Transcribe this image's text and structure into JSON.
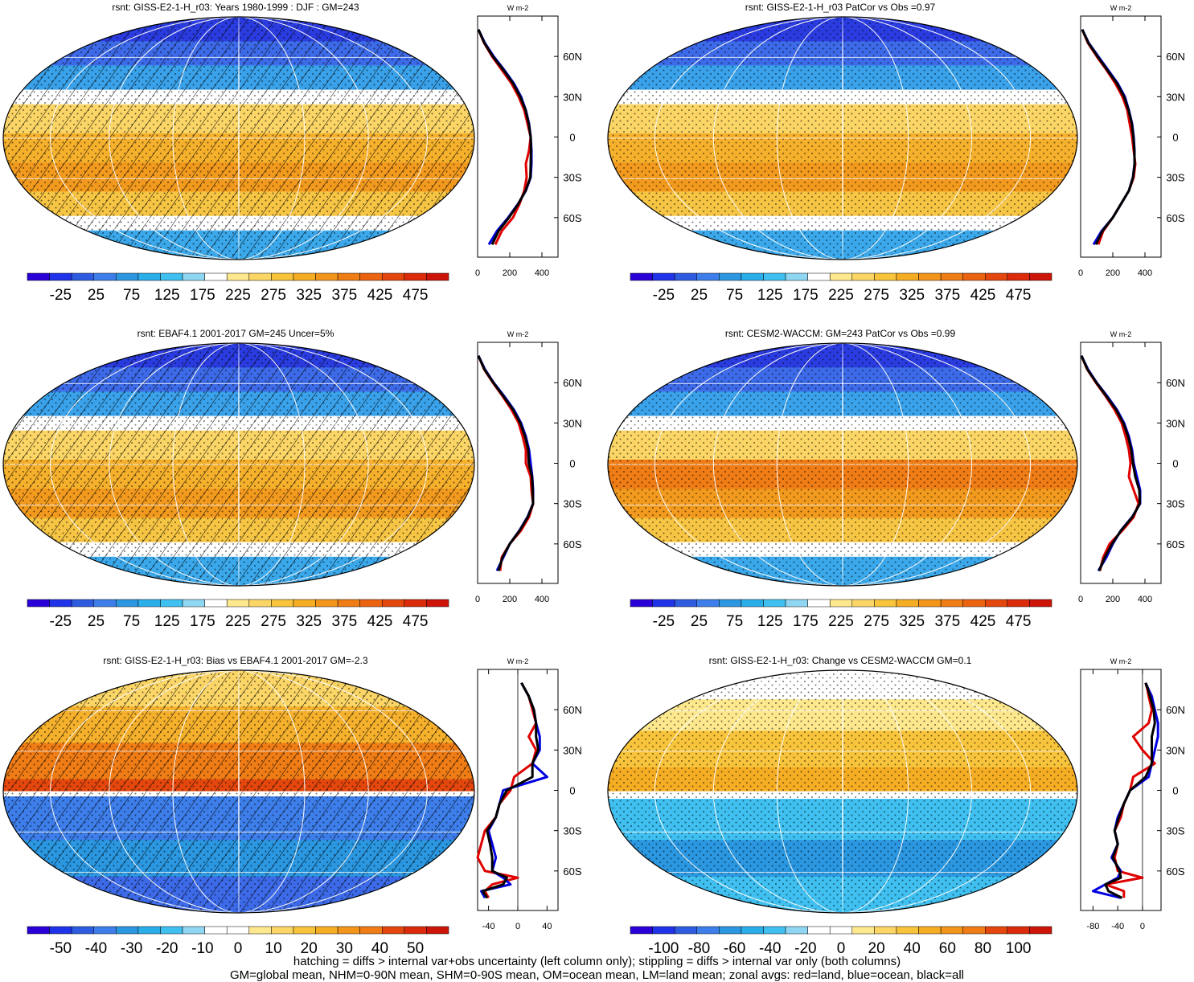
{
  "colors": {
    "abs_scale": [
      "#2a00d8",
      "#1f33e8",
      "#2e5ce0",
      "#3d7eea",
      "#2a97e0",
      "#29aeea",
      "#3fc0f0",
      "#8fd6f2",
      "#ffffff",
      "#fde88e",
      "#fbd566",
      "#f8c43c",
      "#f5ad24",
      "#f2951a",
      "#ef7c15",
      "#eb6210",
      "#e4470d",
      "#dc2b0a",
      "#cc1408"
    ],
    "bias_scale": [
      "#2a00d8",
      "#1f33e8",
      "#2e5ce0",
      "#3d7eea",
      "#2a97e0",
      "#29aeea",
      "#3fc0f0",
      "#8fd6f2",
      "#ffffff",
      "#ffffff",
      "#fde88e",
      "#fbd566",
      "#f8c43c",
      "#f5ad24",
      "#f2951a",
      "#ef7c15",
      "#e4470d",
      "#dc2b0a",
      "#cc1408"
    ],
    "land_line": "#e00000",
    "ocean_line": "#0000e0",
    "all_line": "#000000"
  },
  "footer": {
    "line1": "hatching = diffs > internal var+obs uncertainty (left column only); stippling = diffs > internal var only (both columns)",
    "line2": "GM=global mean, NHM=0-90N mean, SHM=0-90S mean, OM=ocean mean, LM=land mean; zonal avgs: red=land, blue=ocean, black=all"
  },
  "chart_data": [
    {
      "type": "heatmap",
      "title": "rsnt: GISS-E2-1-H_r03: Years 1980-1999 : DJF : GM=243",
      "colorbar_labels": [
        "-25",
        "25",
        "75",
        "125",
        "175",
        "225",
        "275",
        "325",
        "375",
        "425",
        "475"
      ],
      "zonal_avg": {
        "unit": "W m-2",
        "lat_labels": [
          "60N",
          "30N",
          "0",
          "30S",
          "60S"
        ],
        "x_ticks": [
          "0",
          "200",
          "400"
        ],
        "xlim": [
          0,
          500
        ],
        "lat": [
          80,
          70,
          60,
          50,
          40,
          30,
          20,
          10,
          0,
          -10,
          -20,
          -30,
          -40,
          -50,
          -60,
          -70,
          -80
        ],
        "land": [
          5,
          40,
          90,
          150,
          210,
          255,
          290,
          310,
          330,
          320,
          300,
          305,
          290,
          260,
          220,
          150,
          110
        ],
        "ocean": [
          5,
          45,
          100,
          165,
          225,
          270,
          300,
          320,
          330,
          335,
          335,
          330,
          300,
          250,
          190,
          120,
          70
        ],
        "all": [
          5,
          42,
          95,
          160,
          220,
          265,
          298,
          318,
          330,
          332,
          330,
          328,
          298,
          252,
          195,
          130,
          90
        ]
      }
    },
    {
      "type": "heatmap",
      "title": "rsnt: GISS-E2-1-H_r03 PatCor vs Obs =0.97",
      "colorbar_labels": [
        "-25",
        "25",
        "75",
        "125",
        "175",
        "225",
        "275",
        "325",
        "375",
        "425",
        "475"
      ],
      "zonal_avg": {
        "unit": "W m-2",
        "lat_labels": [
          "60N",
          "30N",
          "0",
          "30S",
          "60S"
        ],
        "x_ticks": [
          "0",
          "200",
          "400"
        ],
        "xlim": [
          0,
          500
        ],
        "lat": [
          80,
          70,
          60,
          50,
          40,
          30,
          20,
          10,
          0,
          -10,
          -20,
          -30,
          -40,
          -50,
          -60,
          -70,
          -80
        ],
        "land": [
          10,
          45,
          100,
          160,
          215,
          260,
          290,
          305,
          320,
          330,
          340,
          330,
          300,
          250,
          200,
          140,
          110
        ],
        "ocean": [
          10,
          50,
          110,
          170,
          230,
          275,
          300,
          320,
          330,
          335,
          335,
          325,
          300,
          250,
          200,
          130,
          80
        ],
        "all": [
          10,
          48,
          105,
          165,
          225,
          270,
          298,
          318,
          328,
          334,
          336,
          326,
          300,
          250,
          200,
          135,
          95
        ]
      }
    },
    {
      "type": "heatmap",
      "title": "rsnt: EBAF4.1 2001-2017 GM=245 Uncer=5%",
      "colorbar_labels": [
        "-25",
        "25",
        "75",
        "125",
        "175",
        "225",
        "275",
        "325",
        "375",
        "425",
        "475"
      ],
      "zonal_avg": {
        "unit": "W m-2",
        "lat_labels": [
          "60N",
          "30N",
          "0",
          "30S",
          "60S"
        ],
        "x_ticks": [
          "0",
          "200",
          "400"
        ],
        "xlim": [
          0,
          500
        ],
        "lat": [
          80,
          70,
          60,
          50,
          40,
          30,
          20,
          10,
          0,
          -10,
          -20,
          -30,
          -40,
          -50,
          -60,
          -70,
          -80
        ],
        "land": [
          5,
          40,
          95,
          155,
          210,
          255,
          280,
          300,
          300,
          330,
          335,
          345,
          320,
          270,
          200,
          150,
          140
        ],
        "ocean": [
          5,
          45,
          100,
          165,
          225,
          270,
          300,
          320,
          330,
          340,
          345,
          345,
          310,
          260,
          200,
          160,
          120
        ],
        "all": [
          5,
          42,
          98,
          160,
          220,
          265,
          295,
          315,
          318,
          338,
          343,
          345,
          312,
          262,
          200,
          155,
          130
        ]
      }
    },
    {
      "type": "heatmap",
      "title": "rsnt: CESM2-WACCM: GM=243 PatCor vs Obs =0.99",
      "colorbar_labels": [
        "-25",
        "25",
        "75",
        "125",
        "175",
        "225",
        "275",
        "325",
        "375",
        "425",
        "475"
      ],
      "zonal_avg": {
        "unit": "W m-2",
        "lat_labels": [
          "60N",
          "30N",
          "0",
          "30S",
          "60S"
        ],
        "x_ticks": [
          "0",
          "200",
          "400"
        ],
        "xlim": [
          0,
          500
        ],
        "lat": [
          80,
          70,
          60,
          50,
          40,
          30,
          20,
          10,
          0,
          -10,
          -20,
          -30,
          -40,
          -50,
          -60,
          -70,
          -80
        ],
        "land": [
          5,
          40,
          95,
          155,
          210,
          255,
          280,
          300,
          310,
          300,
          330,
          360,
          330,
          260,
          180,
          140,
          120
        ],
        "ocean": [
          5,
          45,
          100,
          165,
          225,
          270,
          300,
          320,
          330,
          350,
          370,
          370,
          320,
          250,
          200,
          160,
          110
        ],
        "all": [
          5,
          42,
          98,
          160,
          220,
          265,
          295,
          315,
          325,
          340,
          365,
          368,
          322,
          252,
          195,
          150,
          115
        ]
      }
    },
    {
      "type": "heatmap",
      "title": "rsnt: GISS-E2-1-H_r03: Bias vs EBAF4.1 2001-2017 GM=-2.3",
      "colorbar_labels": [
        "-50",
        "-40",
        "-30",
        "-20",
        "-10",
        "0",
        "10",
        "20",
        "30",
        "40",
        "50"
      ],
      "zonal_avg": {
        "unit": "W m-2",
        "lat_labels": [
          "60N",
          "30N",
          "0",
          "30S",
          "60S"
        ],
        "x_ticks": [
          "-40",
          "0",
          "40"
        ],
        "xlim": [
          -55,
          55
        ],
        "lat": [
          80,
          75,
          70,
          60,
          50,
          40,
          30,
          20,
          10,
          0,
          -10,
          -20,
          -30,
          -40,
          -50,
          -60,
          -65,
          -70,
          -75,
          -80
        ],
        "land": [
          5,
          10,
          15,
          20,
          25,
          15,
          25,
          20,
          -5,
          -10,
          -25,
          -30,
          -45,
          -50,
          -55,
          -45,
          0,
          -35,
          -45,
          -40
        ],
        "ocean": [
          5,
          10,
          15,
          22,
          25,
          30,
          30,
          20,
          40,
          -20,
          -25,
          -30,
          -40,
          -35,
          -30,
          -35,
          -20,
          -10,
          -50,
          -45
        ],
        "all": [
          5,
          10,
          15,
          22,
          25,
          25,
          28,
          20,
          20,
          -15,
          -25,
          -30,
          -42,
          -38,
          -35,
          -35,
          -15,
          -20,
          -48,
          -42
        ]
      }
    },
    {
      "type": "heatmap",
      "title": "rsnt: GISS-E2-1-H_r03: Change vs CESM2-WACCM GM=0.1",
      "colorbar_labels": [
        "-100",
        "-80",
        "-60",
        "-40",
        "-20",
        "0",
        "20",
        "40",
        "60",
        "80",
        "100"
      ],
      "zonal_avg": {
        "unit": "W m-2",
        "lat_labels": [
          "60N",
          "30N",
          "0",
          "30S",
          "60S"
        ],
        "x_ticks": [
          "-80",
          "-40",
          "0"
        ],
        "xlim": [
          -100,
          30
        ],
        "lat": [
          80,
          75,
          70,
          60,
          50,
          40,
          30,
          20,
          10,
          0,
          -10,
          -20,
          -30,
          -40,
          -50,
          -60,
          -65,
          -70,
          -75,
          -80
        ],
        "land": [
          5,
          8,
          10,
          15,
          10,
          -15,
          0,
          20,
          -15,
          -20,
          -30,
          -35,
          -45,
          -40,
          -45,
          -40,
          0,
          -60,
          -30,
          -30
        ],
        "ocean": [
          5,
          10,
          15,
          20,
          25,
          25,
          20,
          15,
          10,
          -20,
          -30,
          -40,
          -45,
          -40,
          -50,
          -35,
          -40,
          -60,
          -80,
          -35
        ],
        "all": [
          5,
          9,
          12,
          18,
          20,
          15,
          15,
          15,
          5,
          -20,
          -30,
          -38,
          -45,
          -40,
          -48,
          -37,
          -35,
          -60,
          -55,
          -33
        ]
      }
    }
  ]
}
